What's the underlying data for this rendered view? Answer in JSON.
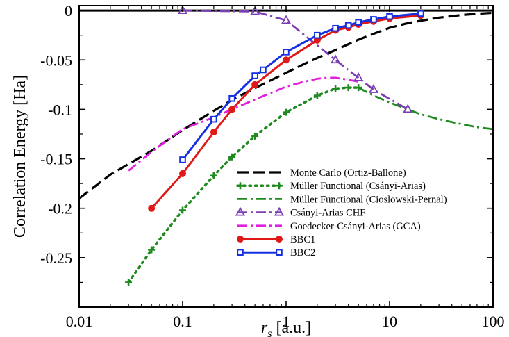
{
  "chart_data": {
    "type": "line",
    "xscale": "log",
    "xlim": [
      0.01,
      100
    ],
    "ylim": [
      -0.3,
      0.005
    ],
    "xticks": [
      0.01,
      0.1,
      1,
      10,
      100
    ],
    "xtick_labels": [
      "0.01",
      "0.1",
      "1",
      "10",
      "100"
    ],
    "yticks": [
      0,
      -0.05,
      -0.1,
      -0.15,
      -0.2,
      -0.25
    ],
    "ytick_labels": [
      "0",
      "-0.05",
      "-0.1",
      "-0.15",
      "-0.2",
      "-0.25"
    ],
    "xlabel_main": "r",
    "xlabel_sub": "s",
    "xlabel_unit": " [a.u.]",
    "ylabel": "Correlation Energy [Ha]",
    "grid": false,
    "legend_position": "lower-right",
    "series": [
      {
        "name": "Monte Carlo (Ortiz-Ballone)",
        "color": "#000000",
        "style": "dashed",
        "marker": "none",
        "x": [
          0.01,
          0.02,
          0.05,
          0.1,
          0.2,
          0.3,
          0.5,
          0.7,
          1,
          1.5,
          2,
          3,
          5,
          7,
          10,
          15,
          20,
          30,
          50,
          70,
          100
        ],
        "y": [
          -0.19,
          -0.166,
          -0.142,
          -0.121,
          -0.1015,
          -0.0905,
          -0.0785,
          -0.071,
          -0.063,
          -0.054,
          -0.048,
          -0.04,
          -0.0295,
          -0.0235,
          -0.0175,
          -0.0128,
          -0.0103,
          -0.0072,
          -0.0045,
          -0.0033,
          -0.0023
        ]
      },
      {
        "name": "Müller Functional (Csányi-Arias)",
        "color": "#1f8a1f",
        "style": "dotted",
        "marker": "plus",
        "x": [
          0.03,
          0.05,
          0.1,
          0.2,
          0.3,
          0.5,
          1,
          2,
          3,
          4,
          5
        ],
        "y": [
          -0.275,
          -0.242,
          -0.202,
          -0.167,
          -0.148,
          -0.127,
          -0.103,
          -0.086,
          -0.079,
          -0.078,
          -0.078
        ]
      },
      {
        "name": "Müller Functional (Cioslowski-Pernal)",
        "color": "#1f8a1f",
        "style": "dashdot",
        "marker": "none",
        "x": [
          5,
          7,
          10,
          15,
          20,
          30,
          50,
          70,
          100
        ],
        "y": [
          -0.078,
          -0.086,
          -0.093,
          -0.1,
          -0.105,
          -0.11,
          -0.115,
          -0.118,
          -0.12
        ]
      },
      {
        "name": "Csányi-Arias CHF",
        "color": "#7b3fb5",
        "style": "dashdot",
        "marker": "triangle",
        "x": [
          0.1,
          0.5,
          1,
          3,
          5,
          7,
          15
        ],
        "y": [
          0,
          -0.001,
          -0.01,
          -0.05,
          -0.068,
          -0.08,
          -0.1
        ]
      },
      {
        "name": "Goedecker-Csányi-Arias (GCA)",
        "color": "#e020e0",
        "style": "dashdot",
        "marker": "none",
        "x": [
          0.03,
          0.05,
          0.1,
          0.2,
          0.3,
          0.5,
          1,
          1.5,
          2,
          2.5,
          3,
          4,
          5
        ],
        "y": [
          -0.162,
          -0.143,
          -0.12,
          -0.108,
          -0.1,
          -0.09,
          -0.077,
          -0.072,
          -0.069,
          -0.068,
          -0.068,
          -0.07,
          -0.072
        ]
      },
      {
        "name": "BBC1",
        "color": "#e01818",
        "style": "solid",
        "marker": "circle",
        "x": [
          0.05,
          0.1,
          0.2,
          0.3,
          0.5,
          1,
          2,
          3,
          4,
          5,
          7,
          10,
          20
        ],
        "y": [
          -0.2,
          -0.165,
          -0.123,
          -0.1,
          -0.075,
          -0.05,
          -0.03,
          -0.02,
          -0.017,
          -0.014,
          -0.011,
          -0.008,
          -0.005
        ]
      },
      {
        "name": "BBC2",
        "color": "#1530e0",
        "style": "solid",
        "marker": "square",
        "x": [
          0.1,
          0.2,
          0.3,
          0.5,
          0.6,
          1,
          2,
          3,
          4,
          5,
          7,
          10,
          20
        ],
        "y": [
          -0.151,
          -0.11,
          -0.089,
          -0.066,
          -0.06,
          -0.042,
          -0.025,
          -0.018,
          -0.015,
          -0.012,
          -0.009,
          -0.006,
          -0.003
        ]
      }
    ]
  }
}
